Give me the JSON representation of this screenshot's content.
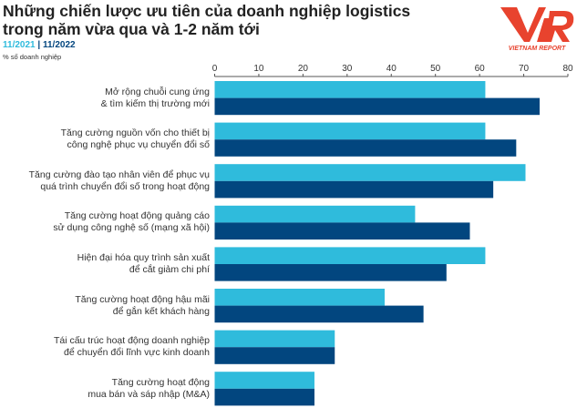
{
  "title_line1": "Những chiến lược ưu tiên của doanh nghiệp logistics",
  "title_line2": "trong năm vừa qua và 1-2 năm tới",
  "unit_label": "% số doanh nghiệp",
  "logo_text": "VNR",
  "logo_subtext": "VIETNAM REPORT",
  "colors": {
    "series_2021": "#2FBBDC",
    "series_2022": "#02467F",
    "logo": "#E8432E"
  },
  "chart_data": {
    "type": "bar",
    "orientation": "horizontal",
    "xlim": [
      0,
      80
    ],
    "ticks": [
      "0",
      "10",
      "20",
      "30",
      "40",
      "50",
      "60",
      "70",
      "80"
    ],
    "tick_values": [
      0,
      10,
      20,
      30,
      40,
      50,
      60,
      70,
      80
    ],
    "legend_position": "top-left",
    "grid": false,
    "categories": [
      [
        "Mở rộng chuỗi cung ứng",
        "& tìm kiếm thị trường mới"
      ],
      [
        "Tăng cường nguồn vốn cho thiết bị",
        "công nghệ phục vụ chuyển đổi số"
      ],
      [
        "Tăng cường đào tạo nhân viên để phục vụ",
        "quá trình chuyển đổi số trong hoạt động"
      ],
      [
        "Tăng cường hoạt động quảng cáo",
        "sử dụng công nghệ số (mạng xã hội)"
      ],
      [
        "Hiện đại hóa quy trình sản xuất",
        "để cắt giảm chi phí"
      ],
      [
        "Tăng cường hoạt động hậu mãi",
        "để gắn kết khách hàng"
      ],
      [
        "Tái cấu trúc hoạt động doanh nghiệp",
        "để chuyển đổi lĩnh vực kinh doanh"
      ],
      [
        "Tăng cường hoạt động",
        "mua bán và sáp nhập (M&A)"
      ]
    ],
    "series": [
      {
        "name": "11/2021",
        "values": [
          61.3,
          61.3,
          70.4,
          45.4,
          61.3,
          38.5,
          27.2,
          22.6
        ]
      },
      {
        "name": "11/2022",
        "values": [
          73.6,
          68.3,
          63.1,
          57.8,
          52.5,
          47.3,
          27.2,
          22.6
        ]
      }
    ]
  }
}
